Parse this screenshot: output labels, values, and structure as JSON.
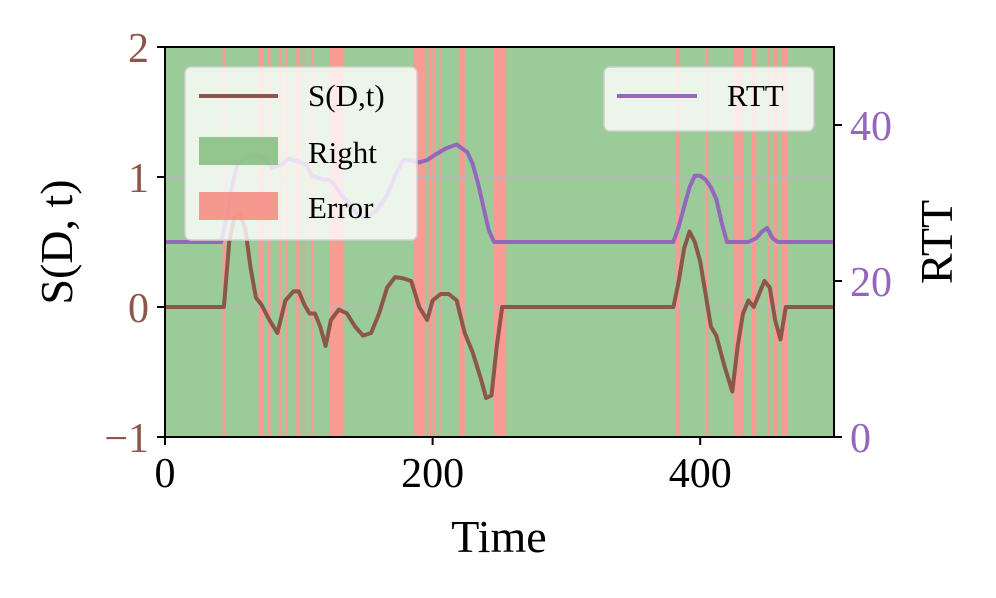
{
  "chart_data": {
    "type": "line",
    "title": "",
    "xlabel": "Time",
    "ylabel_left": "S(D, t)",
    "ylabel_right": "RTT",
    "xlim": [
      0,
      500
    ],
    "ylim_left": [
      -1,
      2
    ],
    "ylim_right": [
      0,
      50
    ],
    "xticks": [
      0,
      200,
      400
    ],
    "yticks_left": [
      -1,
      0,
      1,
      2
    ],
    "yticks_right": [
      0,
      20,
      40
    ],
    "ytick_labels_left": [
      "−1",
      "0",
      "1",
      "2"
    ],
    "xtick_labels": [
      "0",
      "200",
      "400"
    ],
    "ytick_labels_right": [
      "0",
      "20",
      "40"
    ],
    "grid": "horizontal at left y = 0 and y = 1",
    "colors": {
      "s_line": "#8c564b",
      "rtt_line": "#9467bd",
      "right_fill": "#9bcb98",
      "error_fill": "#f89b92",
      "left_axis_text": "#8c564b",
      "right_axis_text": "#9467bd"
    },
    "background_regions": {
      "Right": "all time not covered by Error intervals",
      "Error": [
        [
          43,
          45
        ],
        [
          70,
          74
        ],
        [
          77,
          79
        ],
        [
          85,
          87
        ],
        [
          90,
          92
        ],
        [
          98,
          101
        ],
        [
          103,
          104
        ],
        [
          109,
          111
        ],
        [
          123,
          134
        ],
        [
          186,
          195
        ],
        [
          197,
          199
        ],
        [
          200,
          202
        ],
        [
          205,
          206
        ],
        [
          220,
          224
        ],
        [
          246,
          255
        ],
        [
          382,
          385
        ],
        [
          404,
          406
        ],
        [
          425,
          432
        ],
        [
          438,
          442
        ],
        [
          450,
          452
        ],
        [
          455,
          458
        ],
        [
          461,
          465
        ]
      ]
    },
    "legends": [
      {
        "position": "upper-left",
        "entries": [
          "S(D,t)",
          "Right",
          "Error"
        ]
      },
      {
        "position": "upper-right",
        "entries": [
          "RTT"
        ]
      }
    ],
    "series": [
      {
        "name": "S(D,t)",
        "axis": "left",
        "x": [
          0,
          40,
          44,
          48,
          52,
          56,
          60,
          64,
          68,
          72,
          78,
          84,
          90,
          96,
          100,
          104,
          108,
          112,
          116,
          120,
          124,
          130,
          136,
          142,
          148,
          154,
          160,
          166,
          172,
          178,
          184,
          190,
          196,
          200,
          206,
          212,
          218,
          224,
          230,
          236,
          240,
          244,
          248,
          252,
          256,
          300,
          380,
          384,
          388,
          392,
          396,
          400,
          404,
          408,
          412,
          418,
          424,
          428,
          432,
          436,
          440,
          444,
          448,
          452,
          456,
          460,
          464,
          470,
          500
        ],
        "y": [
          0,
          0,
          0,
          0.5,
          0.7,
          0.72,
          0.6,
          0.3,
          0.07,
          0.02,
          -0.1,
          -0.2,
          0.05,
          0.12,
          0.12,
          0.02,
          -0.05,
          -0.05,
          -0.15,
          -0.3,
          -0.1,
          -0.02,
          -0.05,
          -0.15,
          -0.22,
          -0.2,
          -0.05,
          0.15,
          0.23,
          0.22,
          0.2,
          0,
          -0.1,
          0.05,
          0.1,
          0.1,
          0.05,
          -0.2,
          -0.35,
          -0.55,
          -0.7,
          -0.68,
          -0.3,
          0,
          0,
          0,
          0,
          0.2,
          0.45,
          0.58,
          0.5,
          0.35,
          0.1,
          -0.15,
          -0.22,
          -0.45,
          -0.65,
          -0.3,
          -0.05,
          0.05,
          0.0,
          0.1,
          0.2,
          0.15,
          -0.1,
          -0.25,
          0,
          0,
          0
        ]
      },
      {
        "name": "RTT",
        "axis": "right",
        "x": [
          0,
          42,
          46,
          50,
          54,
          58,
          62,
          66,
          70,
          74,
          80,
          88,
          92,
          96,
          102,
          106,
          110,
          118,
          122,
          126,
          132,
          140,
          144,
          150,
          158,
          166,
          172,
          178,
          184,
          190,
          196,
          202,
          210,
          218,
          222,
          226,
          230,
          234,
          238,
          242,
          246,
          300,
          380,
          384,
          388,
          392,
          396,
          400,
          404,
          408,
          412,
          416,
          420,
          424,
          428,
          436,
          442,
          446,
          450,
          454,
          458,
          500
        ],
        "y": [
          25,
          25,
          28,
          32,
          35,
          35.5,
          35.8,
          36,
          36,
          35.8,
          34.5,
          35,
          35.7,
          35.5,
          35.2,
          34.8,
          33.5,
          33,
          33,
          32.5,
          31,
          29.5,
          28.5,
          28,
          29,
          31,
          33.5,
          35.5,
          35.5,
          35.2,
          35.5,
          36.2,
          37,
          37.5,
          37,
          36.5,
          35,
          32.5,
          29.5,
          26.5,
          25,
          25,
          25,
          27,
          29.5,
          32,
          33.5,
          33.5,
          33,
          32,
          30.5,
          27.5,
          25,
          25,
          25,
          25,
          25.5,
          26.3,
          26.8,
          25.5,
          25,
          25
        ]
      }
    ]
  }
}
